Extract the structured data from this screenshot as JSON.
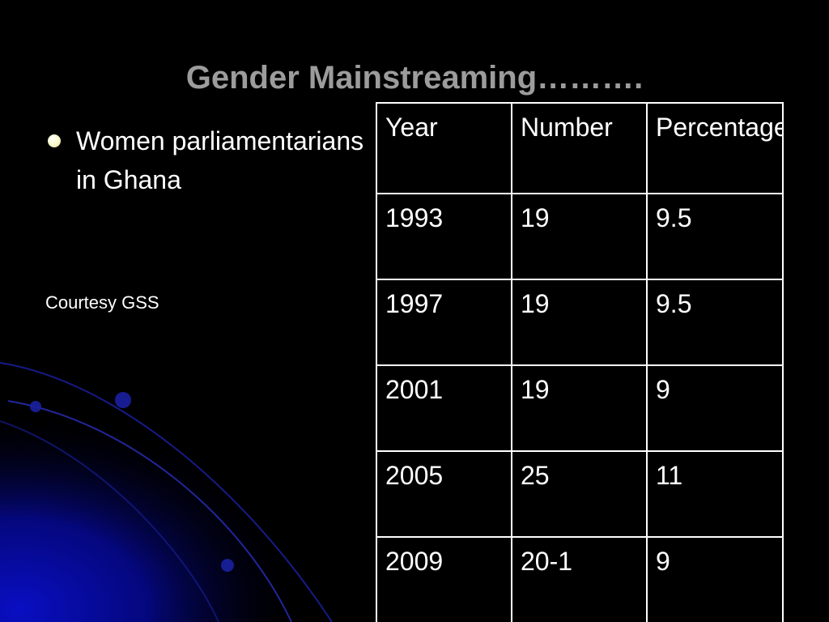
{
  "slide": {
    "title": "Gender Mainstreaming……….",
    "bullets": [
      "Women parliamentarians in Ghana"
    ],
    "source": "Courtesy GSS"
  },
  "table": {
    "headers": [
      "Year",
      "Number",
      "Percentage"
    ],
    "rows": [
      [
        "1993",
        "19",
        "9.5"
      ],
      [
        "1997",
        "19",
        "9.5"
      ],
      [
        "2001",
        "19",
        "9"
      ],
      [
        "2005",
        "25",
        "11"
      ],
      [
        "2009",
        "20-1",
        "9"
      ]
    ]
  },
  "colors": {
    "background": "#000000",
    "title": "#9c9c9c",
    "text": "#ffffff",
    "bullet": "#fdfbd0",
    "accent": "#0a14c8"
  }
}
